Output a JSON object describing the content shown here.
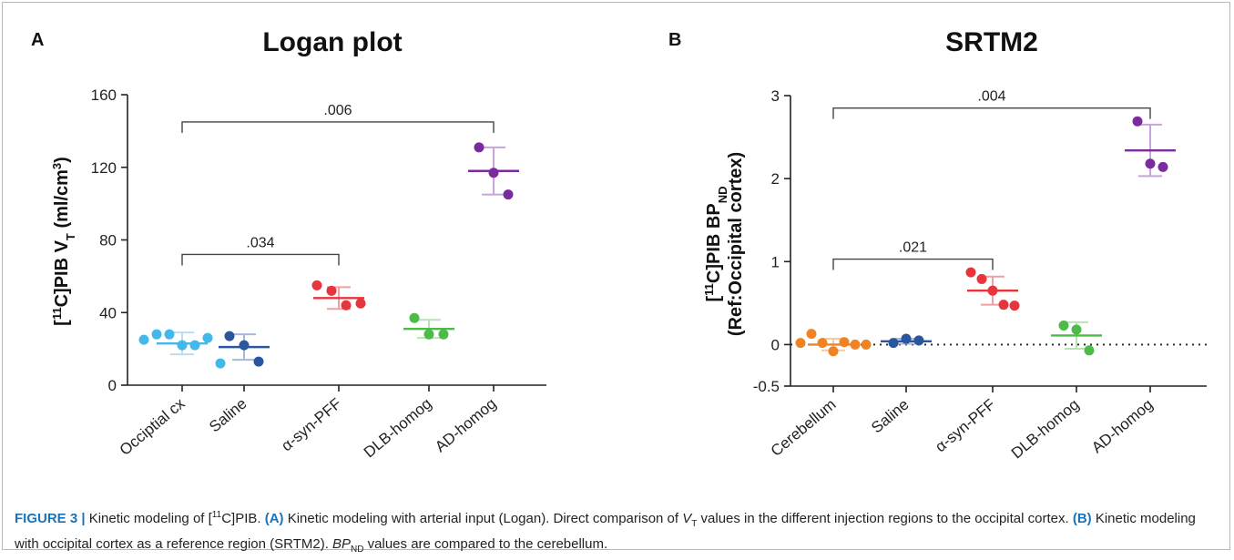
{
  "chart_data": [
    {
      "type": "scatter",
      "panel": "A",
      "title": "Logan plot",
      "ylabel_prefix": "[",
      "ylabel_sup": "11",
      "ylabel_mid": "C]PIB V",
      "ylabel_sub": "T",
      "ylabel_suffix": " (ml/cm",
      "ylabel_sup2": "3",
      "ylabel_end": ")",
      "ylim": [
        0,
        160
      ],
      "yticks": [
        "0",
        "40",
        "80",
        "120",
        "160"
      ],
      "categories": [
        "Occiptial cx",
        "Saline",
        "α-syn-PFF",
        "DLB-homog",
        "AD-homog"
      ],
      "colors": [
        "#44b8e8",
        "#2a56a0",
        "#e8343c",
        "#4cbb48",
        "#7a2c9e"
      ],
      "error_colors": [
        "#bcdcf0",
        "#a8b8d8",
        "#f0a0a4",
        "#b8e4b4",
        "#c8a4dc"
      ],
      "groups": [
        {
          "points": [
            25,
            28,
            28,
            22,
            22,
            26,
            12
          ],
          "mean": 23,
          "sd": 6
        },
        {
          "points": [
            27,
            22,
            13
          ],
          "mean": 21,
          "sd": 7
        },
        {
          "points": [
            55,
            52,
            44,
            45
          ],
          "mean": 48,
          "sd": 6
        },
        {
          "points": [
            37,
            28,
            28
          ],
          "mean": 31,
          "sd": 5
        },
        {
          "points": [
            131,
            117,
            105
          ],
          "mean": 118,
          "sd": 13
        }
      ],
      "comparisons": [
        {
          "from": 0,
          "to": 4,
          "y": 145,
          "label": ".006"
        },
        {
          "from": 0,
          "to": 2,
          "y": 72,
          "label": ".034"
        }
      ],
      "reference_line": null
    },
    {
      "type": "scatter",
      "panel": "B",
      "title": "SRTM2",
      "ylabel_line1_prefix": "[",
      "ylabel_line1_sup": "11",
      "ylabel_line1_mid": "C]PIB BP",
      "ylabel_line1_sub": "ND",
      "ylabel_line2": "(Ref:Occipital cortex)",
      "ylim": [
        -0.5,
        3
      ],
      "yticks": [
        "-0.5",
        "0",
        "1",
        "2",
        "3"
      ],
      "categories": [
        "Cerebellum",
        "Saline",
        "α-syn-PFF",
        "DLB-homog",
        "AD-homog"
      ],
      "colors": [
        "#f08424",
        "#2a56a0",
        "#e8343c",
        "#4cbb48",
        "#7a2c9e"
      ],
      "error_colors": [
        "#f8c8a0",
        "#a8b8d8",
        "#f0a0a4",
        "#b8e4b4",
        "#c8a4dc"
      ],
      "groups": [
        {
          "points": [
            0.02,
            0.13,
            0.02,
            -0.08,
            0.03,
            0.0,
            0.0
          ],
          "mean": 0.0,
          "sd": 0.07
        },
        {
          "points": [
            0.02,
            0.07,
            0.05
          ],
          "mean": 0.04,
          "sd": 0.03
        },
        {
          "points": [
            0.87,
            0.79,
            0.65,
            0.48,
            0.47
          ],
          "mean": 0.65,
          "sd": 0.17
        },
        {
          "points": [
            0.23,
            0.18,
            -0.07
          ],
          "mean": 0.11,
          "sd": 0.16
        },
        {
          "points": [
            2.69,
            2.18,
            2.14
          ],
          "mean": 2.34,
          "sd": 0.31
        }
      ],
      "comparisons": [
        {
          "from": 0,
          "to": 4,
          "y": 2.85,
          "label": ".004"
        },
        {
          "from": 0,
          "to": 2,
          "y": 1.03,
          "label": ".021"
        }
      ],
      "reference_line": 0
    }
  ],
  "caption": {
    "lead": "FIGURE 3 |",
    "text1": " Kinetic modeling of [",
    "sup1": "11",
    "text2": "C]PIB. ",
    "a_label": "(A)",
    "text3": " Kinetic modeling with arterial input (Logan). Direct comparison of ",
    "vt_v": "V",
    "vt_t": "T",
    "text4": " values in the different injection regions to the occipital cortex. ",
    "b_label": "(B)",
    "text5": " Kinetic modeling with occipital cortex as a reference region (SRTM2). ",
    "bp": "BP",
    "bp_sub": "ND",
    "text6": " values are compared to the cerebellum."
  }
}
